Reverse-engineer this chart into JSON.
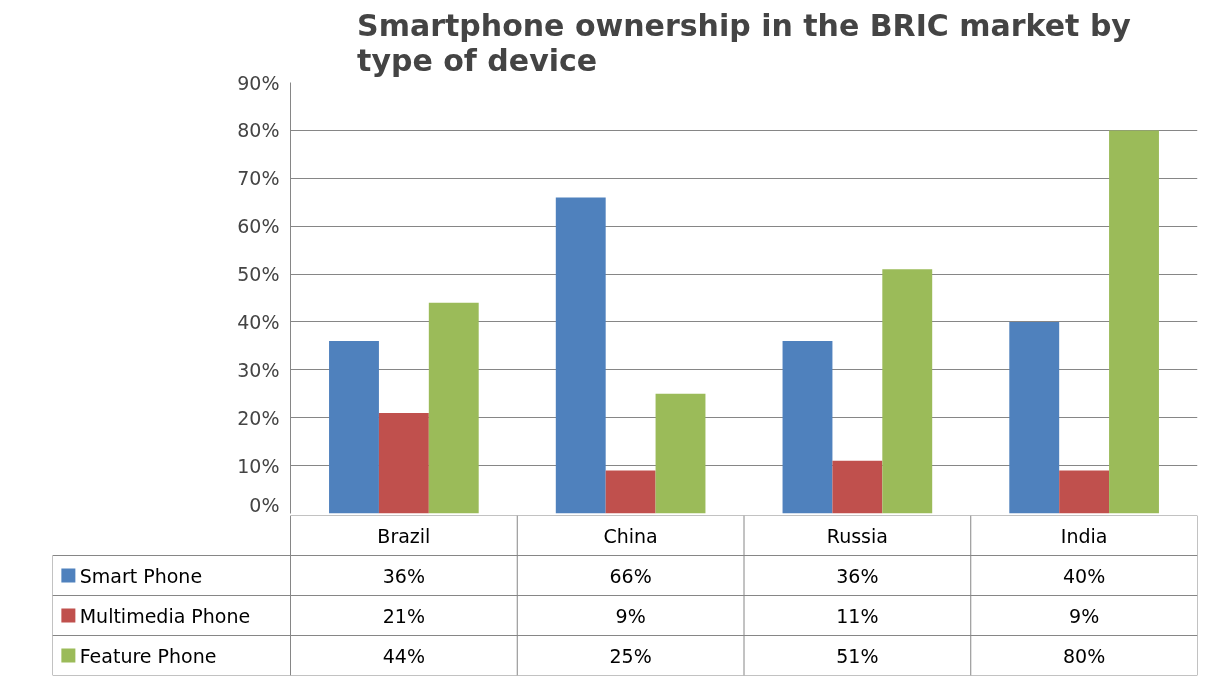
{
  "chart_data": {
    "type": "bar",
    "title": "Smartphone ownership in the BRIC market by type of device",
    "categories": [
      "Brazil",
      "China",
      "Russia",
      "India"
    ],
    "series": [
      {
        "name": "Smart Phone",
        "color": "#4f81bd",
        "values": [
          36,
          66,
          36,
          40
        ],
        "value_labels": [
          "36%",
          "66%",
          "36%",
          "40%"
        ]
      },
      {
        "name": "Multimedia Phone",
        "color": "#c0504d",
        "values": [
          21,
          9,
          11,
          9
        ],
        "value_labels": [
          "21%",
          "9%",
          "11%",
          "9%"
        ]
      },
      {
        "name": "Feature Phone",
        "color": "#9bbb59",
        "values": [
          44,
          25,
          51,
          80
        ],
        "value_labels": [
          "44%",
          "25%",
          "51%",
          "80%"
        ]
      }
    ],
    "ylim": [
      0,
      90
    ],
    "yticks": [
      {
        "value": 0,
        "label": "0%"
      },
      {
        "value": 10,
        "label": "10%"
      },
      {
        "value": 20,
        "label": "20%"
      },
      {
        "value": 30,
        "label": "30%"
      },
      {
        "value": 40,
        "label": "40%"
      },
      {
        "value": 50,
        "label": "50%"
      },
      {
        "value": 60,
        "label": "60%"
      },
      {
        "value": 70,
        "label": "70%"
      },
      {
        "value": 80,
        "label": "80%"
      },
      {
        "value": 90,
        "label": "90%"
      }
    ],
    "grid": "y",
    "legend": "bottom"
  }
}
